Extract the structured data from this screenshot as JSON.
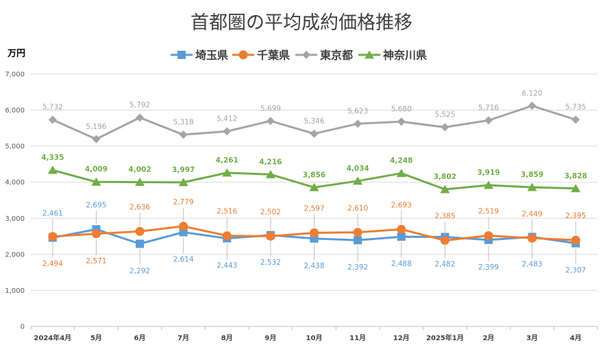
{
  "chart_data": {
    "type": "line",
    "title": "首都圏の平均成約価格推移",
    "ylabel": "万円",
    "xlabel": "",
    "ylim": [
      0,
      7000
    ],
    "yticks": [
      "0",
      "1,000",
      "2,000",
      "3,000",
      "4,000",
      "5,000",
      "6,000",
      "7,000"
    ],
    "categories": [
      "2024年4月",
      "5月",
      "6月",
      "7月",
      "8月",
      "9月",
      "10月",
      "11月",
      "12月",
      "2025年1月",
      "2月",
      "3月",
      "4月"
    ],
    "legend_position": "top",
    "grid": "horizontal",
    "series": [
      {
        "name": "埼玉県",
        "color": "#5B9BD5",
        "marker": "square",
        "values": [
          2461,
          2695,
          2292,
          2614,
          2443,
          2532,
          2438,
          2392,
          2488,
          2482,
          2399,
          2483,
          2307
        ],
        "labels": [
          "2,461",
          "2,695",
          "2,292",
          "2,614",
          "2,443",
          "2,532",
          "2,438",
          "2,392",
          "2,488",
          "2,482",
          "2,399",
          "2,483",
          "2,307"
        ],
        "label_pos": [
          "above",
          "above",
          "below",
          "below",
          "below",
          "below",
          "below",
          "below",
          "below",
          "below",
          "below",
          "below",
          "below"
        ]
      },
      {
        "name": "千葉県",
        "color": "#ED7D31",
        "marker": "circle",
        "values": [
          2494,
          2571,
          2636,
          2779,
          2516,
          2502,
          2597,
          2610,
          2693,
          2385,
          2519,
          2449,
          2395
        ],
        "labels": [
          "2,494",
          "2,571",
          "2,636",
          "2,779",
          "2,516",
          "2,502",
          "2,597",
          "2,610",
          "2,693",
          "2,385",
          "2,519",
          "2,449",
          "2,395"
        ],
        "label_pos": [
          "below",
          "below",
          "above",
          "above",
          "above",
          "above",
          "above",
          "above",
          "above",
          "above",
          "above",
          "above",
          "above"
        ]
      },
      {
        "name": "東京都",
        "color": "#A5A5A5",
        "marker": "diamond",
        "values": [
          5732,
          5196,
          5792,
          5318,
          5412,
          5699,
          5346,
          5623,
          5680,
          5525,
          5716,
          6120,
          5735
        ],
        "labels": [
          "5,732",
          "5,196",
          "5,792",
          "5,318",
          "5,412",
          "5,699",
          "5,346",
          "5,623",
          "5,680",
          "5,525",
          "5,716",
          "6,120",
          "5,735"
        ],
        "label_pos": [
          "above",
          "above",
          "above",
          "above",
          "above",
          "above",
          "above",
          "above",
          "above",
          "above",
          "above",
          "above",
          "above"
        ]
      },
      {
        "name": "神奈川県",
        "color": "#70AD47",
        "marker": "triangle",
        "bold_labels": true,
        "values": [
          4335,
          4009,
          4002,
          3997,
          4261,
          4216,
          3856,
          4034,
          4248,
          3802,
          3919,
          3859,
          3828
        ],
        "labels": [
          "4,335",
          "4,009",
          "4,002",
          "3,997",
          "4,261",
          "4,216",
          "3,856",
          "4,034",
          "4,248",
          "3,802",
          "3,919",
          "3,859",
          "3,828"
        ],
        "label_pos": [
          "above",
          "above",
          "above",
          "above",
          "above",
          "above",
          "above",
          "above",
          "above",
          "above",
          "above",
          "above",
          "above"
        ]
      }
    ]
  }
}
